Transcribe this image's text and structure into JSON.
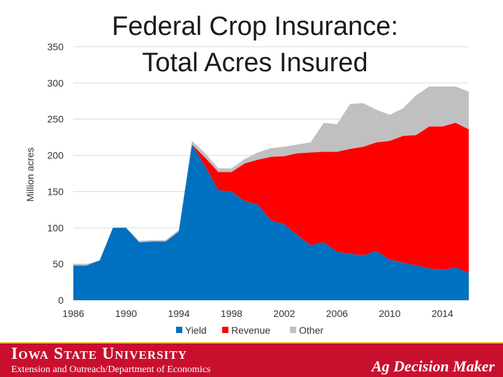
{
  "slide": {
    "title_line1": "Federal Crop Insurance:",
    "title_line2": "Total Acres Insured"
  },
  "footer": {
    "university": "Iowa State University",
    "department": "Extension and Outreach/Department of Economics",
    "brand": "Ag Decision Maker"
  },
  "colors": {
    "Yield": "#0070c0",
    "Revenue": "#ff0000",
    "Other": "#c0c0c0",
    "footer_bg": "#c8102e"
  },
  "chart_data": {
    "type": "area",
    "stacked": true,
    "ylabel": "Million acres",
    "ylim": [
      0,
      350
    ],
    "yticks": [
      0,
      50,
      100,
      150,
      200,
      250,
      300,
      350
    ],
    "xticks": [
      1986,
      1990,
      1994,
      1998,
      2002,
      2006,
      2010,
      2014
    ],
    "grid": true,
    "legend": "bottom",
    "x": [
      1986,
      1987,
      1988,
      1989,
      1990,
      1991,
      1992,
      1993,
      1994,
      1995,
      1996,
      1997,
      1998,
      1999,
      2000,
      2001,
      2002,
      2003,
      2004,
      2005,
      2006,
      2007,
      2008,
      2009,
      2010,
      2011,
      2012,
      2013,
      2014,
      2015,
      2016
    ],
    "series": [
      {
        "name": "Yield",
        "values": [
          48,
          48,
          55,
          100,
          100,
          80,
          81,
          81,
          95,
          215,
          185,
          152,
          150,
          137,
          132,
          110,
          105,
          90,
          76,
          80,
          67,
          64,
          62,
          68,
          56,
          52,
          48,
          44,
          42,
          45,
          38
        ]
      },
      {
        "name": "Revenue",
        "values": [
          0,
          0,
          0,
          0,
          0,
          0,
          0,
          0,
          0,
          0,
          12,
          25,
          27,
          52,
          62,
          88,
          94,
          113,
          128,
          125,
          138,
          145,
          150,
          150,
          164,
          175,
          180,
          196,
          198,
          200,
          198
        ]
      },
      {
        "name": "Other",
        "values": [
          2,
          2,
          0,
          0,
          0,
          2,
          2,
          2,
          2,
          5,
          6,
          5,
          5,
          6,
          10,
          12,
          13,
          12,
          14,
          40,
          38,
          62,
          60,
          45,
          36,
          38,
          55,
          55,
          55,
          50,
          52
        ]
      }
    ]
  }
}
